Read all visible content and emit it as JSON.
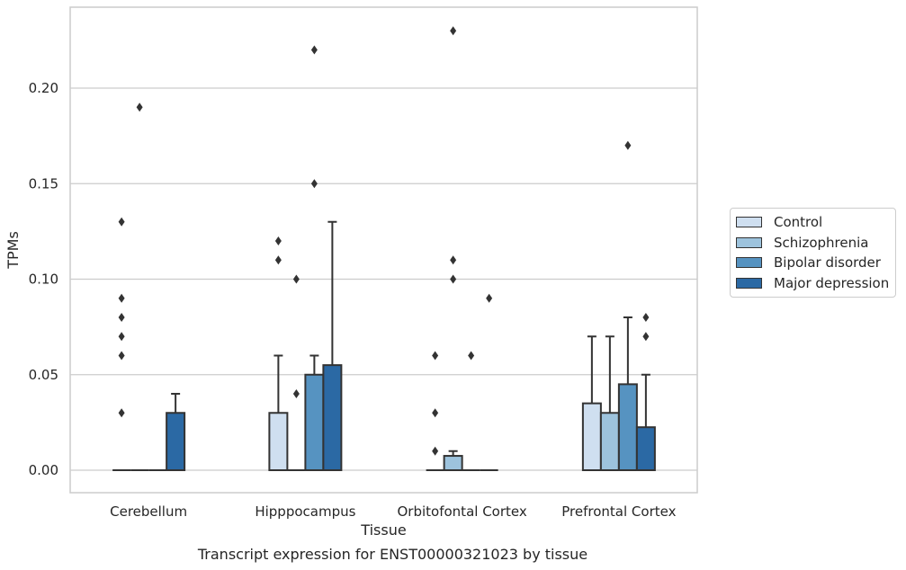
{
  "chart_data": {
    "type": "bar",
    "title": "Transcript expression for ENST00000321023 by tissue",
    "xlabel": "Tissue",
    "ylabel": "TPMs",
    "ylim": [
      -0.011,
      0.242
    ],
    "yticks": [
      "0.00",
      "0.05",
      "0.10",
      "0.15",
      "0.20"
    ],
    "ytick_values": [
      0,
      0.05,
      0.1,
      0.15,
      0.2
    ],
    "grid": "horizontal",
    "legend_position": "right",
    "categories": [
      "Cerebellum",
      "Hipppocampus",
      "Orbitofontal Cortex",
      "Prefrontal Cortex"
    ],
    "series": [
      {
        "name": "Control",
        "color": "#cfdff0",
        "values": [
          0,
          0.03,
          0,
          0.035
        ],
        "whisker_high": [
          0,
          0.06,
          0,
          0.07
        ],
        "outliers": [
          [
            0.03,
            0.06,
            0.07,
            0.08,
            0.09,
            0.13
          ],
          [
            0.11,
            0.12
          ],
          [
            0.01,
            0.03,
            0.06
          ],
          []
        ]
      },
      {
        "name": "Schizophrenia",
        "color": "#9dc3dd",
        "values": [
          0,
          0,
          0.0075,
          0.03
        ],
        "whisker_high": [
          0,
          0,
          0.01,
          0.07
        ],
        "outliers": [
          [
            0.19
          ],
          [
            0.04,
            0.1
          ],
          [
            0.1,
            0.11,
            0.23
          ],
          []
        ]
      },
      {
        "name": "Bipolar disorder",
        "color": "#5693c1",
        "values": [
          0,
          0.05,
          0,
          0.045
        ],
        "whisker_high": [
          0,
          0.06,
          0,
          0.08
        ],
        "outliers": [
          [],
          [
            0.15,
            0.22
          ],
          [
            0.06
          ],
          [
            0.17
          ]
        ]
      },
      {
        "name": "Major depression",
        "color": "#2b69a4",
        "values": [
          0.03,
          0.055,
          0,
          0.0225
        ],
        "whisker_high": [
          0.04,
          0.13,
          0,
          0.05
        ],
        "outliers": [
          [],
          [],
          [
            0.09
          ],
          [
            0.07,
            0.08
          ]
        ]
      }
    ]
  },
  "colors": {
    "edge": "#333333",
    "grid": "#cccccc",
    "frame": "#cccccc"
  }
}
